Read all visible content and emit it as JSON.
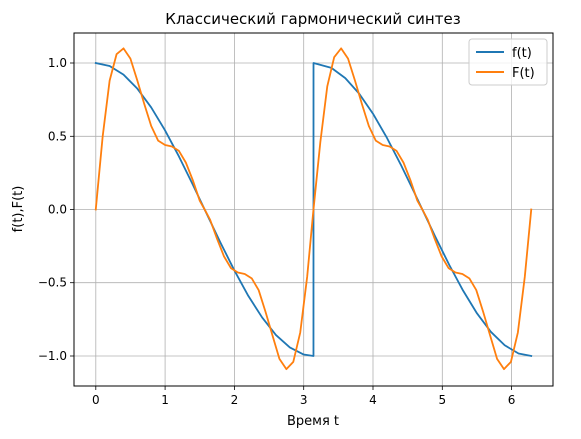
{
  "chart_data": {
    "type": "line",
    "title": "Классический гармонический синтез",
    "xlabel": "Время t",
    "ylabel": "f(t),F(t)",
    "xlim": [
      -0.314,
      6.597
    ],
    "ylim": [
      -1.205,
      1.205
    ],
    "x_ticks": [
      0,
      1,
      2,
      3,
      4,
      5,
      6
    ],
    "x_tick_labels": [
      "0",
      "1",
      "2",
      "3",
      "4",
      "5",
      "6"
    ],
    "y_ticks": [
      1.0,
      0.5,
      0.0,
      -0.5,
      -1.0
    ],
    "y_tick_labels": [
      "1.0",
      "0.5",
      "0.0",
      "−0.5",
      "−1.0"
    ],
    "grid": true,
    "legend_position": "top-right",
    "series": [
      {
        "name": "f(t)",
        "color": "#1f77b4",
        "x_range": [
          0,
          6.283
        ],
        "points": [
          [
            0,
            1.0
          ],
          [
            0.2,
            0.98
          ],
          [
            0.4,
            0.921
          ],
          [
            0.6,
            0.825
          ],
          [
            0.8,
            0.697
          ],
          [
            1.0,
            0.54
          ],
          [
            1.2,
            0.362
          ],
          [
            1.4,
            0.17
          ],
          [
            1.571,
            0.0
          ],
          [
            1.8,
            -0.227
          ],
          [
            2.0,
            -0.416
          ],
          [
            2.2,
            -0.589
          ],
          [
            2.4,
            -0.737
          ],
          [
            2.6,
            -0.857
          ],
          [
            2.8,
            -0.942
          ],
          [
            3.0,
            -0.99
          ],
          [
            3.141,
            -1.0
          ],
          [
            3.1416,
            1.0
          ],
          [
            3.4,
            0.967
          ],
          [
            3.6,
            0.897
          ],
          [
            3.8,
            0.791
          ],
          [
            4.0,
            0.654
          ],
          [
            4.2,
            0.49
          ],
          [
            4.4,
            0.307
          ],
          [
            4.6,
            0.112
          ],
          [
            4.712,
            0.0
          ],
          [
            4.9,
            -0.187
          ],
          [
            5.1,
            -0.378
          ],
          [
            5.3,
            -0.554
          ],
          [
            5.5,
            -0.709
          ],
          [
            5.7,
            -0.835
          ],
          [
            5.9,
            -0.927
          ],
          [
            6.1,
            -0.983
          ],
          [
            6.283,
            -1.0
          ]
        ]
      },
      {
        "name": "F(t)",
        "color": "#ff7f0e",
        "x_range": [
          0,
          6.283
        ],
        "points": [
          [
            0,
            0.0
          ],
          [
            0.1,
            0.5
          ],
          [
            0.2,
            0.88
          ],
          [
            0.3,
            1.06
          ],
          [
            0.4,
            1.1
          ],
          [
            0.5,
            1.03
          ],
          [
            0.6,
            0.88
          ],
          [
            0.7,
            0.72
          ],
          [
            0.8,
            0.57
          ],
          [
            0.9,
            0.47
          ],
          [
            1.0,
            0.44
          ],
          [
            1.1,
            0.43
          ],
          [
            1.2,
            0.4
          ],
          [
            1.3,
            0.32
          ],
          [
            1.4,
            0.2
          ],
          [
            1.5,
            0.06
          ],
          [
            1.571,
            0.0
          ],
          [
            1.65,
            -0.07
          ],
          [
            1.75,
            -0.2
          ],
          [
            1.85,
            -0.32
          ],
          [
            1.95,
            -0.4
          ],
          [
            2.05,
            -0.43
          ],
          [
            2.15,
            -0.44
          ],
          [
            2.25,
            -0.47
          ],
          [
            2.35,
            -0.55
          ],
          [
            2.45,
            -0.7
          ],
          [
            2.55,
            -0.86
          ],
          [
            2.65,
            -1.02
          ],
          [
            2.75,
            -1.09
          ],
          [
            2.85,
            -1.04
          ],
          [
            2.95,
            -0.84
          ],
          [
            3.05,
            -0.46
          ],
          [
            3.141,
            0.0
          ],
          [
            3.24,
            0.46
          ],
          [
            3.34,
            0.84
          ],
          [
            3.44,
            1.04
          ],
          [
            3.54,
            1.1
          ],
          [
            3.64,
            1.03
          ],
          [
            3.74,
            0.88
          ],
          [
            3.84,
            0.72
          ],
          [
            3.94,
            0.57
          ],
          [
            4.04,
            0.47
          ],
          [
            4.14,
            0.44
          ],
          [
            4.24,
            0.43
          ],
          [
            4.34,
            0.4
          ],
          [
            4.44,
            0.32
          ],
          [
            4.54,
            0.2
          ],
          [
            4.64,
            0.06
          ],
          [
            4.712,
            0.0
          ],
          [
            4.79,
            -0.07
          ],
          [
            4.89,
            -0.2
          ],
          [
            4.99,
            -0.32
          ],
          [
            5.09,
            -0.4
          ],
          [
            5.19,
            -0.43
          ],
          [
            5.29,
            -0.44
          ],
          [
            5.39,
            -0.47
          ],
          [
            5.49,
            -0.55
          ],
          [
            5.59,
            -0.7
          ],
          [
            5.69,
            -0.86
          ],
          [
            5.79,
            -1.02
          ],
          [
            5.89,
            -1.09
          ],
          [
            5.99,
            -1.04
          ],
          [
            6.09,
            -0.84
          ],
          [
            6.19,
            -0.46
          ],
          [
            6.283,
            0.0
          ]
        ]
      }
    ]
  }
}
